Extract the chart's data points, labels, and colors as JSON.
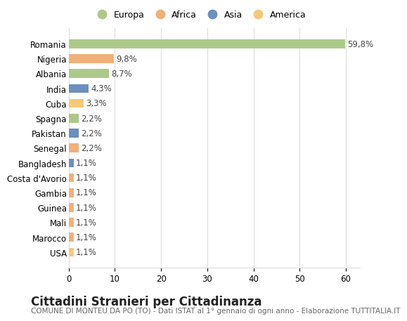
{
  "categories": [
    "Romania",
    "Nigeria",
    "Albania",
    "India",
    "Cuba",
    "Spagna",
    "Pakistan",
    "Senegal",
    "Bangladesh",
    "Costa d'Avorio",
    "Gambia",
    "Guinea",
    "Mali",
    "Marocco",
    "USA"
  ],
  "values": [
    59.8,
    9.8,
    8.7,
    4.3,
    3.3,
    2.2,
    2.2,
    2.2,
    1.1,
    1.1,
    1.1,
    1.1,
    1.1,
    1.1,
    1.1
  ],
  "labels": [
    "59,8%",
    "9,8%",
    "8,7%",
    "4,3%",
    "3,3%",
    "2,2%",
    "2,2%",
    "2,2%",
    "1,1%",
    "1,1%",
    "1,1%",
    "1,1%",
    "1,1%",
    "1,1%",
    "1,1%"
  ],
  "colors": [
    "#adc98a",
    "#f0b07a",
    "#adc98a",
    "#6b8fbf",
    "#f5c97a",
    "#adc98a",
    "#6b8fbf",
    "#f0b07a",
    "#6b8fbf",
    "#f0b07a",
    "#f0b07a",
    "#f0b07a",
    "#f0b07a",
    "#f0b07a",
    "#f5c97a"
  ],
  "legend_labels": [
    "Europa",
    "Africa",
    "Asia",
    "America"
  ],
  "legend_colors": [
    "#adc98a",
    "#f0b07a",
    "#6b8fbf",
    "#f5c97a"
  ],
  "title": "Cittadini Stranieri per Cittadinanza",
  "subtitle": "COMUNE DI MONTEU DA PO (TO) - Dati ISTAT al 1° gennaio di ogni anno - Elaborazione TUTTITALIA.IT",
  "xlim": [
    0,
    63
  ],
  "xticks": [
    0,
    10,
    20,
    30,
    40,
    50,
    60
  ],
  "background_color": "#ffffff",
  "grid_color": "#dddddd",
  "bar_height": 0.6,
  "title_fontsize": 12,
  "subtitle_fontsize": 7.5,
  "label_fontsize": 8.5,
  "tick_fontsize": 8.5,
  "legend_fontsize": 9
}
